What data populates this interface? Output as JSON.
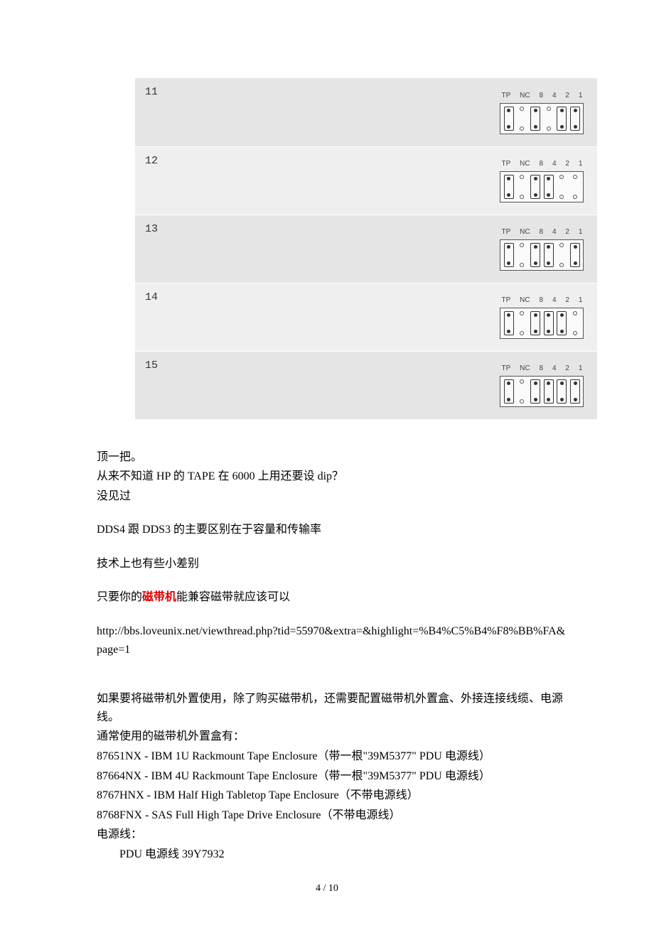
{
  "dip": {
    "headers": [
      "TP",
      "NC",
      "8",
      "4",
      "2",
      "1"
    ],
    "rows": [
      {
        "id": "11",
        "bg": "even",
        "pattern": [
          1,
          0,
          1,
          0,
          1,
          1
        ]
      },
      {
        "id": "12",
        "bg": "odd",
        "pattern": [
          1,
          0,
          1,
          1,
          0,
          0
        ]
      },
      {
        "id": "13",
        "bg": "even",
        "pattern": [
          1,
          0,
          1,
          1,
          0,
          1
        ]
      },
      {
        "id": "14",
        "bg": "odd",
        "pattern": [
          1,
          0,
          1,
          1,
          1,
          0
        ]
      },
      {
        "id": "15",
        "bg": "even",
        "pattern": [
          1,
          0,
          1,
          1,
          1,
          1
        ]
      }
    ],
    "colors": {
      "even_bg": "#e5e5e5",
      "odd_bg": "#efefef",
      "border": "#555555",
      "dot": "#333333"
    }
  },
  "text": {
    "p1": "顶一把。",
    "p2": "从来不知道 HP 的 TAPE 在 6000 上用还要设 dip？",
    "p3": "没见过",
    "p4": "DDS4 跟 DDS3 的主要区别在于容量和传输率",
    "p5": "技术上也有些小差别",
    "p6_pre": "只要你的",
    "p6_red": "磁带机",
    "p6_post": "能兼容磁带就应该可以",
    "url": "http://bbs.loveunix.net/viewthread.php?tid=55970&extra=&highlight=%B4%C5%B4%F8%BB%FA&page=1",
    "enc_intro1": "如果要将磁带机外置使用，除了购买磁带机，还需要配置磁带机外置盒、外接连接线缆、电源线。",
    "enc_intro2": "通常使用的磁带机外置盒有：",
    "enc1": "87651NX - IBM 1U Rackmount Tape Enclosure（带一根\"39M5377\" PDU  电源线）",
    "enc2": "87664NX - IBM 4U Rackmount Tape Enclosure（带一根\"39M5377\" PDU  电源线）",
    "enc3": "8767HNX - IBM Half High Tabletop Tape Enclosure（不带电源线）",
    "enc4": "8768FNX - SAS Full High Tape Drive Enclosure（不带电源线）",
    "power_label": "电源线：",
    "power_item": "PDU 电源线  39Y7932",
    "pagenum": "4  /  10"
  }
}
